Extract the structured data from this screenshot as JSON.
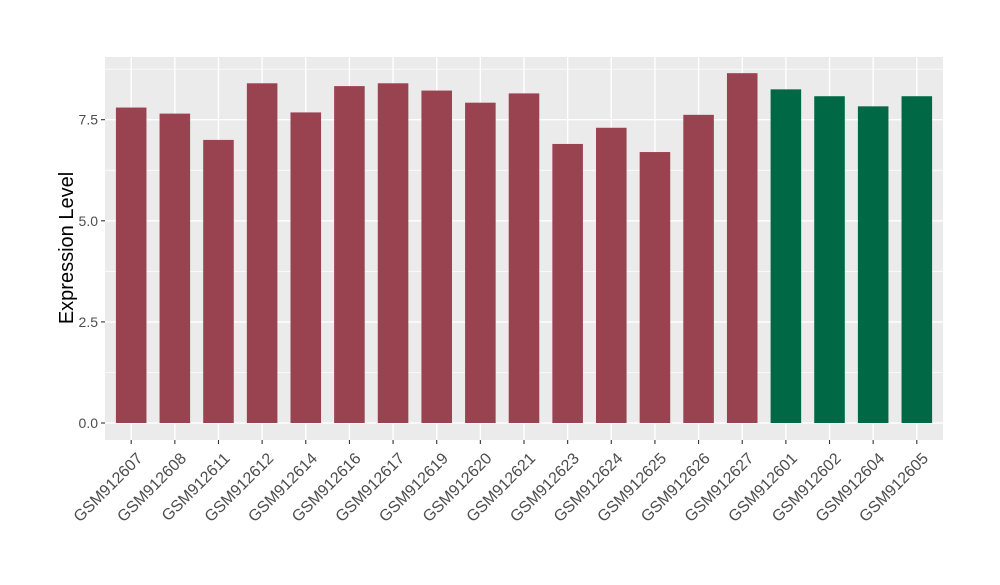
{
  "chart_data": {
    "type": "bar",
    "title": "",
    "xlabel": "",
    "ylabel": "Expression Level",
    "ylim": [
      -0.42,
      9.05
    ],
    "yticks": [
      0.0,
      2.5,
      5.0,
      7.5
    ],
    "ytick_labels": [
      "0.0",
      "2.5",
      "5.0",
      "7.5"
    ],
    "grid": true,
    "legend": "none",
    "panel_color": "#EBEBEB",
    "categories": [
      "GSM912607",
      "GSM912608",
      "GSM912611",
      "GSM912612",
      "GSM912614",
      "GSM912616",
      "GSM912617",
      "GSM912619",
      "GSM912620",
      "GSM912621",
      "GSM912623",
      "GSM912624",
      "GSM912625",
      "GSM912626",
      "GSM912627",
      "GSM912601",
      "GSM912602",
      "GSM912604",
      "GSM912605"
    ],
    "values": [
      7.8,
      7.65,
      7.0,
      8.4,
      7.68,
      8.33,
      8.4,
      8.22,
      7.92,
      8.15,
      6.9,
      7.3,
      6.7,
      7.62,
      8.65,
      8.25,
      8.08,
      7.83,
      8.08
    ],
    "groups": [
      "a",
      "a",
      "a",
      "a",
      "a",
      "a",
      "a",
      "a",
      "a",
      "a",
      "a",
      "a",
      "a",
      "a",
      "a",
      "b",
      "b",
      "b",
      "b"
    ],
    "group_colors": {
      "a": "#994250",
      "b": "#006845"
    }
  }
}
